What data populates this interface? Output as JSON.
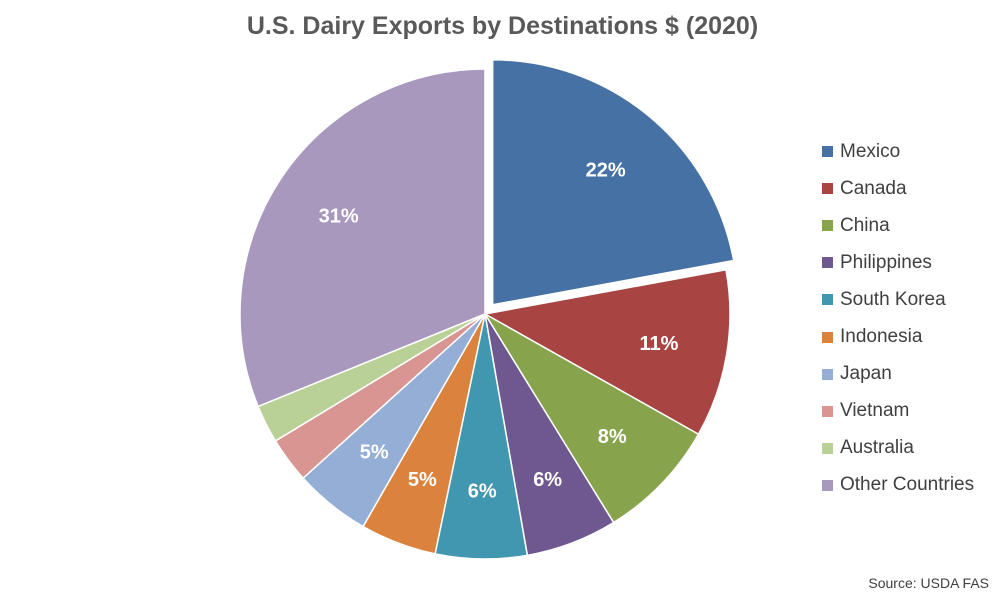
{
  "chart_data": {
    "type": "pie",
    "title": "U.S. Dairy Exports by Destinations $ (2020)",
    "categories": [
      "Mexico",
      "Canada",
      "China",
      "Philippines",
      "South Korea",
      "Indonesia",
      "Japan",
      "Vietnam",
      "Australia",
      "Other Countries"
    ],
    "values": [
      22,
      11,
      8,
      6,
      6,
      5,
      5,
      3,
      2.5,
      31
    ],
    "labels": [
      "22%",
      "11%",
      "8%",
      "6%",
      "6%",
      "5%",
      "5%",
      "",
      "",
      "31%"
    ],
    "colors": [
      "#4671A5",
      "#A84543",
      "#87A44D",
      "#6F5790",
      "#4197B0",
      "#DB823D",
      "#94AED6",
      "#D89592",
      "#B9D197",
      "#A898BD"
    ],
    "exploded": [
      "Mexico"
    ],
    "legend_position": "right"
  },
  "source_note": "Source: USDA FAS"
}
